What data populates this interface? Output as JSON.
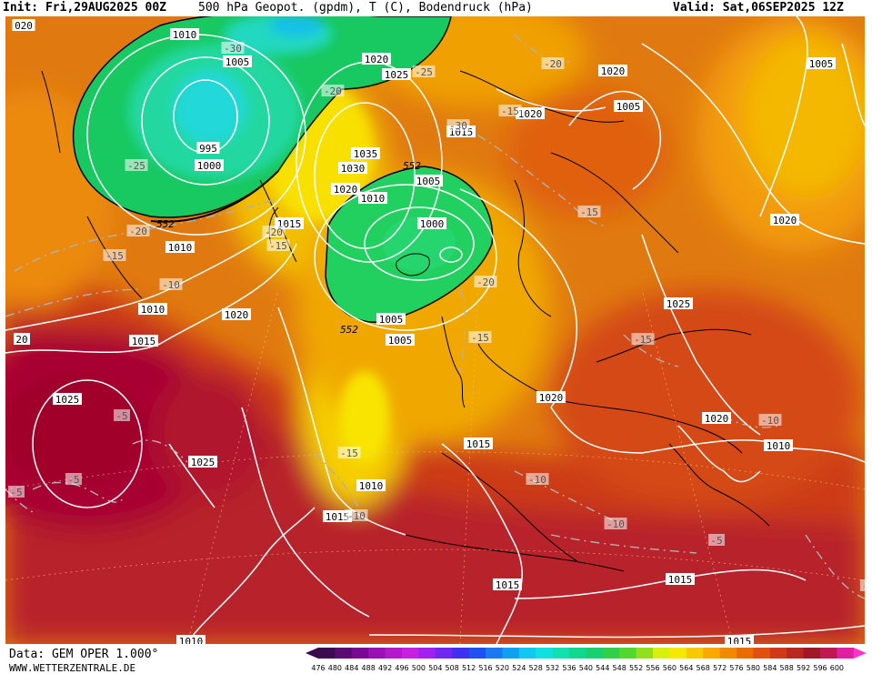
{
  "header": {
    "init": "Init: Fri,29AUG2025 00Z",
    "title": "500 hPa Geopot. (gpdm), T (C), Bodendruck (hPa)",
    "valid": "Valid: Sat,06SEP2025 12Z"
  },
  "footer": {
    "source": "Data: GEM OPER 1.000°",
    "site": "WWW.WETTERZENTRALE.DE"
  },
  "colors": {
    "lowest": "#3a0a4a",
    "highest": "#ff33cc",
    "ocean_low": "#1ec86e",
    "ridge": "#a8002c"
  },
  "scale": {
    "labels": [
      "476",
      "480",
      "484",
      "488",
      "492",
      "496",
      "500",
      "504",
      "508",
      "512",
      "516",
      "520",
      "524",
      "528",
      "532",
      "536",
      "540",
      "544",
      "548",
      "552",
      "556",
      "560",
      "564",
      "568",
      "572",
      "576",
      "580",
      "584",
      "588",
      "592",
      "596",
      "600"
    ],
    "colors": [
      "#3c0a4e",
      "#5a0a72",
      "#7a0a94",
      "#9a10b4",
      "#b418cc",
      "#c820e0",
      "#a020f0",
      "#7028f0",
      "#4030f0",
      "#2050f0",
      "#1a78f0",
      "#10a0f0",
      "#10c8f0",
      "#10e0e0",
      "#10e0b0",
      "#10d890",
      "#18d070",
      "#30d048",
      "#50d830",
      "#90e020",
      "#d8f010",
      "#f8e800",
      "#f8c800",
      "#f8a800",
      "#f08800",
      "#e86c00",
      "#e05010",
      "#d03818",
      "#b82820",
      "#a01828",
      "#c01850",
      "#e020a0"
    ]
  },
  "isobars": [
    {
      "label": "1010"
    },
    {
      "label": "1005"
    },
    {
      "label": "1000"
    },
    {
      "label": "995"
    },
    {
      "label": "1020"
    },
    {
      "label": "1025"
    },
    {
      "label": "1035"
    },
    {
      "label": "1030"
    },
    {
      "label": "1020"
    },
    {
      "label": "1010"
    },
    {
      "label": "1005"
    },
    {
      "label": "1015"
    },
    {
      "label": "1000"
    },
    {
      "label": "1005"
    },
    {
      "label": "1005"
    },
    {
      "label": "1015"
    },
    {
      "label": "1020"
    },
    {
      "label": "1025"
    },
    {
      "label": "1020"
    },
    {
      "label": "1005"
    },
    {
      "label": "1010"
    },
    {
      "label": "1020"
    },
    {
      "label": "1010"
    },
    {
      "label": "1005"
    },
    {
      "label": "1015"
    },
    {
      "label": "1020"
    },
    {
      "label": "1025"
    },
    {
      "label": "1025"
    },
    {
      "label": "1015"
    },
    {
      "label": "1010"
    },
    {
      "label": "1015"
    },
    {
      "label": "1020"
    },
    {
      "label": "1015"
    },
    {
      "label": "1010"
    },
    {
      "label": "1015"
    },
    {
      "label": "1015"
    },
    {
      "label": "1010"
    },
    {
      "label": "1020"
    },
    {
      "label": "020"
    },
    {
      "label": "20"
    }
  ],
  "temps": [
    {
      "label": "-30"
    },
    {
      "label": "-20"
    },
    {
      "label": "-25"
    },
    {
      "label": "-25"
    },
    {
      "label": "-20"
    },
    {
      "label": "-15"
    },
    {
      "label": "-10"
    },
    {
      "label": "-15"
    },
    {
      "label": "-20"
    },
    {
      "label": "-30"
    },
    {
      "label": "-15"
    },
    {
      "label": "-20"
    },
    {
      "label": "-15"
    },
    {
      "label": "-15"
    },
    {
      "label": "-15"
    },
    {
      "label": "-10"
    },
    {
      "label": "-10"
    },
    {
      "label": "-10"
    },
    {
      "label": "-5"
    },
    {
      "label": "-5"
    },
    {
      "label": "-5"
    },
    {
      "label": "-5"
    },
    {
      "label": "-10"
    },
    {
      "label": "-5"
    },
    {
      "label": "-20"
    },
    {
      "label": "-15"
    }
  ],
  "geopot_labels": [
    {
      "label": "552"
    },
    {
      "label": "552"
    },
    {
      "label": "552"
    }
  ]
}
